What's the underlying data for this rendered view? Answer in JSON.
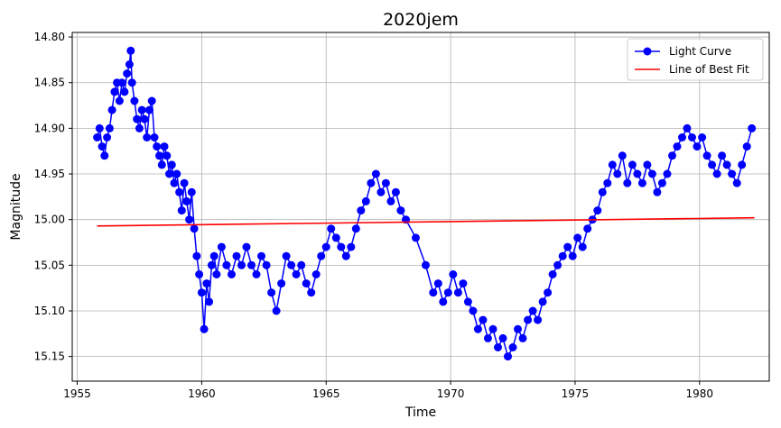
{
  "chart_data": {
    "type": "line",
    "title": "2020jem",
    "xlabel": "Time",
    "ylabel": "Magnitude",
    "xlim": [
      1954.8,
      1982.8
    ],
    "ylim": [
      15.177,
      14.795
    ],
    "y_inverted": true,
    "xticks": [
      1955,
      1960,
      1965,
      1970,
      1975,
      1980
    ],
    "yticks": [
      14.8,
      14.85,
      14.9,
      14.95,
      15.0,
      15.05,
      15.1,
      15.15
    ],
    "ytick_labels": [
      "14.80",
      "14.85",
      "14.90",
      "14.95",
      "15.00",
      "15.05",
      "15.10",
      "15.15"
    ],
    "grid": true,
    "legend_position": "top-right",
    "series": [
      {
        "name": "Light Curve",
        "color": "#0000ff",
        "marker": "circle",
        "points": [
          [
            1955.8,
            14.91
          ],
          [
            1955.9,
            14.9
          ],
          [
            1956.0,
            14.92
          ],
          [
            1956.1,
            14.93
          ],
          [
            1956.2,
            14.91
          ],
          [
            1956.3,
            14.9
          ],
          [
            1956.4,
            14.88
          ],
          [
            1956.5,
            14.86
          ],
          [
            1956.6,
            14.85
          ],
          [
            1956.7,
            14.87
          ],
          [
            1956.8,
            14.85
          ],
          [
            1956.9,
            14.86
          ],
          [
            1957.0,
            14.84
          ],
          [
            1957.1,
            14.83
          ],
          [
            1957.15,
            14.815
          ],
          [
            1957.2,
            14.85
          ],
          [
            1957.3,
            14.87
          ],
          [
            1957.4,
            14.89
          ],
          [
            1957.5,
            14.9
          ],
          [
            1957.6,
            14.88
          ],
          [
            1957.7,
            14.89
          ],
          [
            1957.8,
            14.91
          ],
          [
            1957.9,
            14.88
          ],
          [
            1958.0,
            14.87
          ],
          [
            1958.1,
            14.91
          ],
          [
            1958.2,
            14.92
          ],
          [
            1958.3,
            14.93
          ],
          [
            1958.4,
            14.94
          ],
          [
            1958.5,
            14.92
          ],
          [
            1958.6,
            14.93
          ],
          [
            1958.7,
            14.95
          ],
          [
            1958.8,
            14.94
          ],
          [
            1958.9,
            14.96
          ],
          [
            1959.0,
            14.95
          ],
          [
            1959.1,
            14.97
          ],
          [
            1959.2,
            14.99
          ],
          [
            1959.3,
            14.96
          ],
          [
            1959.4,
            14.98
          ],
          [
            1959.5,
            15.0
          ],
          [
            1959.6,
            14.97
          ],
          [
            1959.7,
            15.01
          ],
          [
            1959.8,
            15.04
          ],
          [
            1959.9,
            15.06
          ],
          [
            1960.0,
            15.08
          ],
          [
            1960.1,
            15.12
          ],
          [
            1960.2,
            15.07
          ],
          [
            1960.3,
            15.09
          ],
          [
            1960.4,
            15.05
          ],
          [
            1960.5,
            15.04
          ],
          [
            1960.6,
            15.06
          ],
          [
            1960.8,
            15.03
          ],
          [
            1961.0,
            15.05
          ],
          [
            1961.2,
            15.06
          ],
          [
            1961.4,
            15.04
          ],
          [
            1961.6,
            15.05
          ],
          [
            1961.8,
            15.03
          ],
          [
            1962.0,
            15.05
          ],
          [
            1962.2,
            15.06
          ],
          [
            1962.4,
            15.04
          ],
          [
            1962.6,
            15.05
          ],
          [
            1962.8,
            15.08
          ],
          [
            1963.0,
            15.1
          ],
          [
            1963.2,
            15.07
          ],
          [
            1963.4,
            15.04
          ],
          [
            1963.6,
            15.05
          ],
          [
            1963.8,
            15.06
          ],
          [
            1964.0,
            15.05
          ],
          [
            1964.2,
            15.07
          ],
          [
            1964.4,
            15.08
          ],
          [
            1964.6,
            15.06
          ],
          [
            1964.8,
            15.04
          ],
          [
            1965.0,
            15.03
          ],
          [
            1965.2,
            15.01
          ],
          [
            1965.4,
            15.02
          ],
          [
            1965.6,
            15.03
          ],
          [
            1965.8,
            15.04
          ],
          [
            1966.0,
            15.03
          ],
          [
            1966.2,
            15.01
          ],
          [
            1966.4,
            14.99
          ],
          [
            1966.6,
            14.98
          ],
          [
            1966.8,
            14.96
          ],
          [
            1967.0,
            14.95
          ],
          [
            1967.2,
            14.97
          ],
          [
            1967.4,
            14.96
          ],
          [
            1967.6,
            14.98
          ],
          [
            1967.8,
            14.97
          ],
          [
            1968.0,
            14.99
          ],
          [
            1968.2,
            15.0
          ],
          [
            1968.6,
            15.02
          ],
          [
            1969.0,
            15.05
          ],
          [
            1969.3,
            15.08
          ],
          [
            1969.5,
            15.07
          ],
          [
            1969.7,
            15.09
          ],
          [
            1969.9,
            15.08
          ],
          [
            1970.1,
            15.06
          ],
          [
            1970.3,
            15.08
          ],
          [
            1970.5,
            15.07
          ],
          [
            1970.7,
            15.09
          ],
          [
            1970.9,
            15.1
          ],
          [
            1971.1,
            15.12
          ],
          [
            1971.3,
            15.11
          ],
          [
            1971.5,
            15.13
          ],
          [
            1971.7,
            15.12
          ],
          [
            1971.9,
            15.14
          ],
          [
            1972.1,
            15.13
          ],
          [
            1972.3,
            15.15
          ],
          [
            1972.5,
            15.14
          ],
          [
            1972.7,
            15.12
          ],
          [
            1972.9,
            15.13
          ],
          [
            1973.1,
            15.11
          ],
          [
            1973.3,
            15.1
          ],
          [
            1973.5,
            15.11
          ],
          [
            1973.7,
            15.09
          ],
          [
            1973.9,
            15.08
          ],
          [
            1974.1,
            15.06
          ],
          [
            1974.3,
            15.05
          ],
          [
            1974.5,
            15.04
          ],
          [
            1974.7,
            15.03
          ],
          [
            1974.9,
            15.04
          ],
          [
            1975.1,
            15.02
          ],
          [
            1975.3,
            15.03
          ],
          [
            1975.5,
            15.01
          ],
          [
            1975.7,
            15.0
          ],
          [
            1975.9,
            14.99
          ],
          [
            1976.1,
            14.97
          ],
          [
            1976.3,
            14.96
          ],
          [
            1976.5,
            14.94
          ],
          [
            1976.7,
            14.95
          ],
          [
            1976.9,
            14.93
          ],
          [
            1977.1,
            14.96
          ],
          [
            1977.3,
            14.94
          ],
          [
            1977.5,
            14.95
          ],
          [
            1977.7,
            14.96
          ],
          [
            1977.9,
            14.94
          ],
          [
            1978.1,
            14.95
          ],
          [
            1978.3,
            14.97
          ],
          [
            1978.5,
            14.96
          ],
          [
            1978.7,
            14.95
          ],
          [
            1978.9,
            14.93
          ],
          [
            1979.1,
            14.92
          ],
          [
            1979.3,
            14.91
          ],
          [
            1979.5,
            14.9
          ],
          [
            1979.7,
            14.91
          ],
          [
            1979.9,
            14.92
          ],
          [
            1980.1,
            14.91
          ],
          [
            1980.3,
            14.93
          ],
          [
            1980.5,
            14.94
          ],
          [
            1980.7,
            14.95
          ],
          [
            1980.9,
            14.93
          ],
          [
            1981.1,
            14.94
          ],
          [
            1981.3,
            14.95
          ],
          [
            1981.5,
            14.96
          ],
          [
            1981.7,
            14.94
          ],
          [
            1981.9,
            14.92
          ],
          [
            1982.1,
            14.9
          ]
        ]
      },
      {
        "name": "Line of Best Fit",
        "color": "#ff0000",
        "marker": "none",
        "points": [
          [
            1955.8,
            15.007
          ],
          [
            1982.2,
            14.998
          ]
        ]
      }
    ]
  }
}
